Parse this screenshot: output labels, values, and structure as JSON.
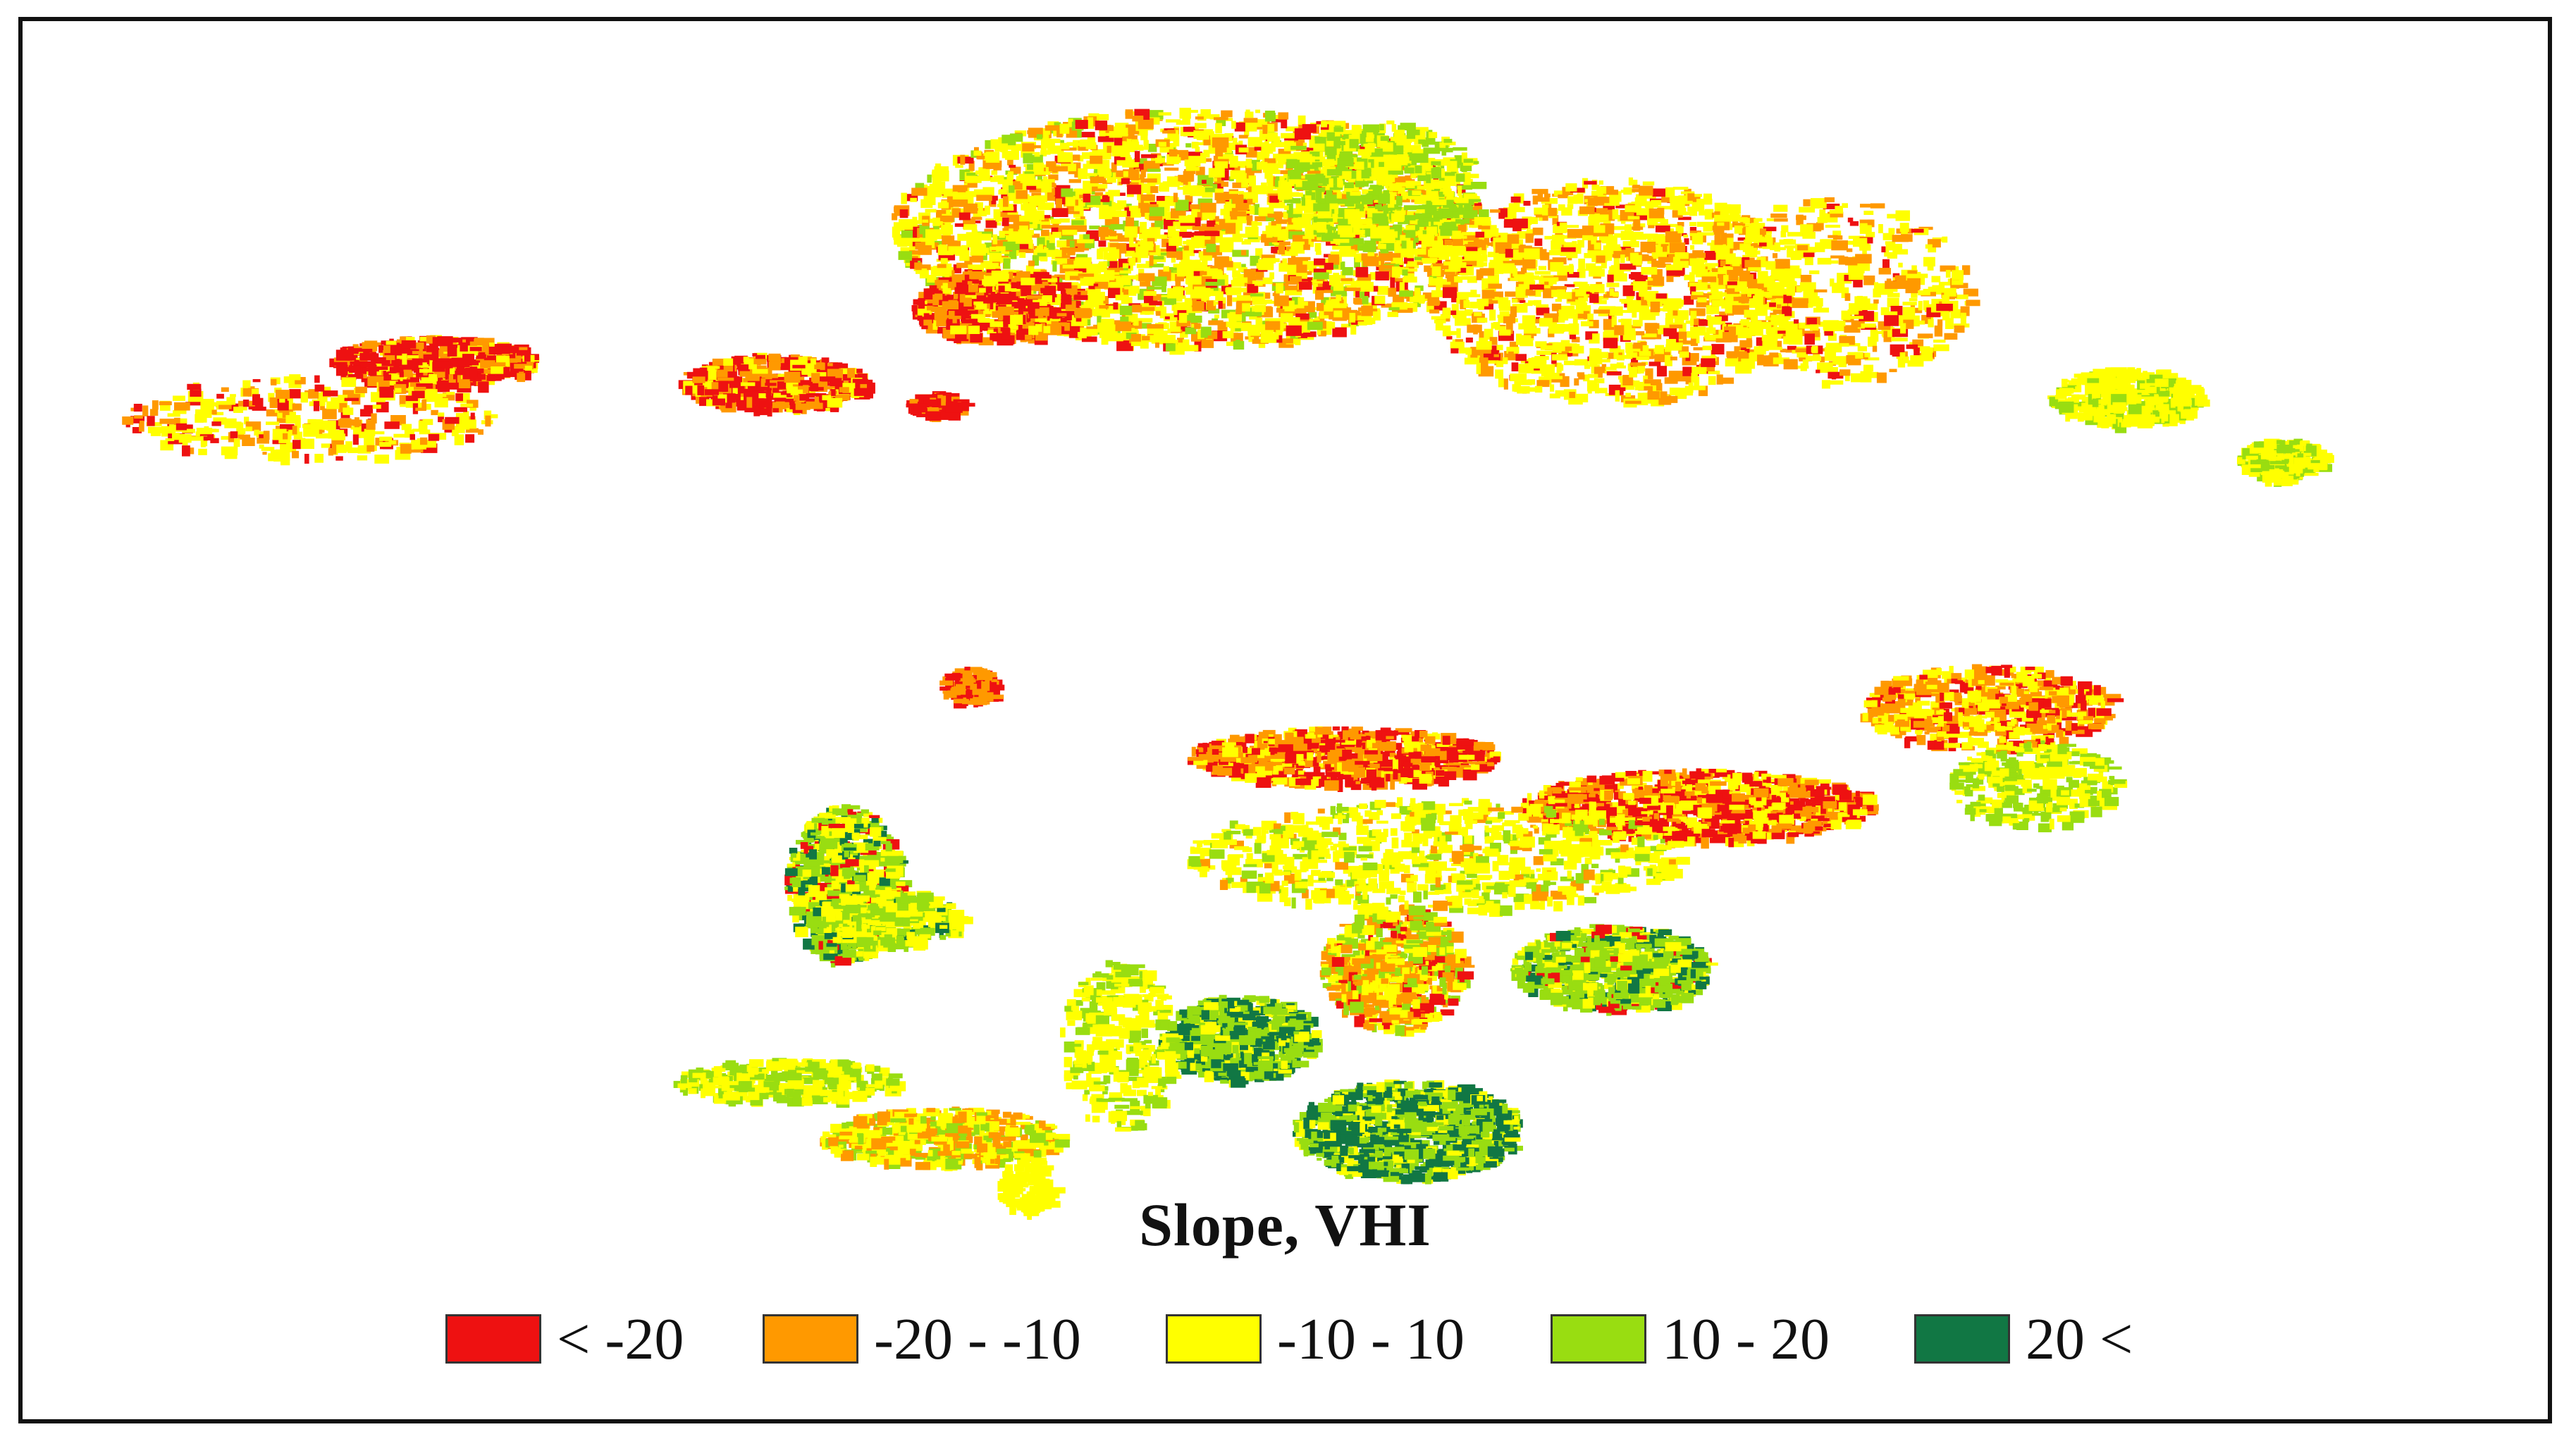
{
  "map": {
    "title": "Slope, VHI"
  },
  "legend": {
    "items": [
      {
        "label": "< -20",
        "color": "#ee1111"
      },
      {
        "label": "-20 - -10",
        "color": "#ff9900"
      },
      {
        "label": "-10 - 10",
        "color": "#ffff00"
      },
      {
        "label": "10 - 20",
        "color": "#99dd11"
      },
      {
        "label": "20 <",
        "color": "#117744"
      }
    ]
  }
}
